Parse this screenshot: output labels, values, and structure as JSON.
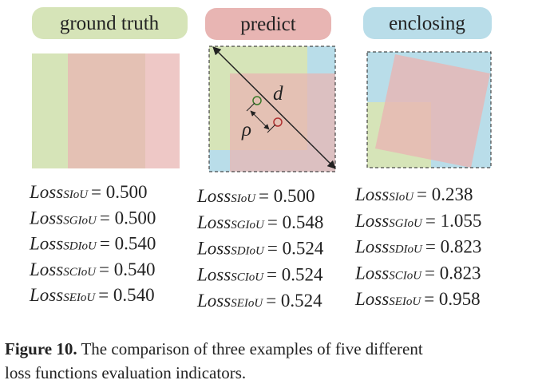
{
  "legend": [
    "ground truth",
    "predict",
    "enclosing"
  ],
  "annotations": {
    "distance": "d",
    "center": "ρ"
  },
  "columns": [
    [
      {
        "loss": "Loss",
        "sub": "SIoU",
        "value": "= 0.500"
      },
      {
        "loss": "Loss",
        "sub": "SGIoU",
        "value": "= 0.500"
      },
      {
        "loss": "Loss",
        "sub": "SDIoU",
        "value": "= 0.540"
      },
      {
        "loss": "Loss",
        "sub": "SCIoU",
        "value": "= 0.540"
      },
      {
        "loss": "Loss",
        "sub": "SEIoU",
        "value": "= 0.540"
      }
    ],
    [
      {
        "loss": "Loss",
        "sub": "SIoU",
        "value": "= 0.500"
      },
      {
        "loss": "Loss",
        "sub": "SGIoU",
        "value": "= 0.548"
      },
      {
        "loss": "Loss",
        "sub": "SDIoU",
        "value": "= 0.524"
      },
      {
        "loss": "Loss",
        "sub": "SCIoU",
        "value": "= 0.524"
      },
      {
        "loss": "Loss",
        "sub": "SEIoU",
        "value": "= 0.524"
      }
    ],
    [
      {
        "loss": "Loss",
        "sub": "SIoU",
        "value": "= 0.238"
      },
      {
        "loss": "Loss",
        "sub": "SGIoU",
        "value": "= 1.055"
      },
      {
        "loss": "Loss",
        "sub": "SDIoU",
        "value": "= 0.823"
      },
      {
        "loss": "Loss",
        "sub": "SCIoU",
        "value": "= 0.823"
      },
      {
        "loss": "Loss",
        "sub": "SEIoU",
        "value": "= 0.958"
      }
    ]
  ],
  "caption": {
    "label": "Figure 10.",
    "text": " The comparison of three examples of five different",
    "text2": "loss functions evaluation indicators."
  }
}
